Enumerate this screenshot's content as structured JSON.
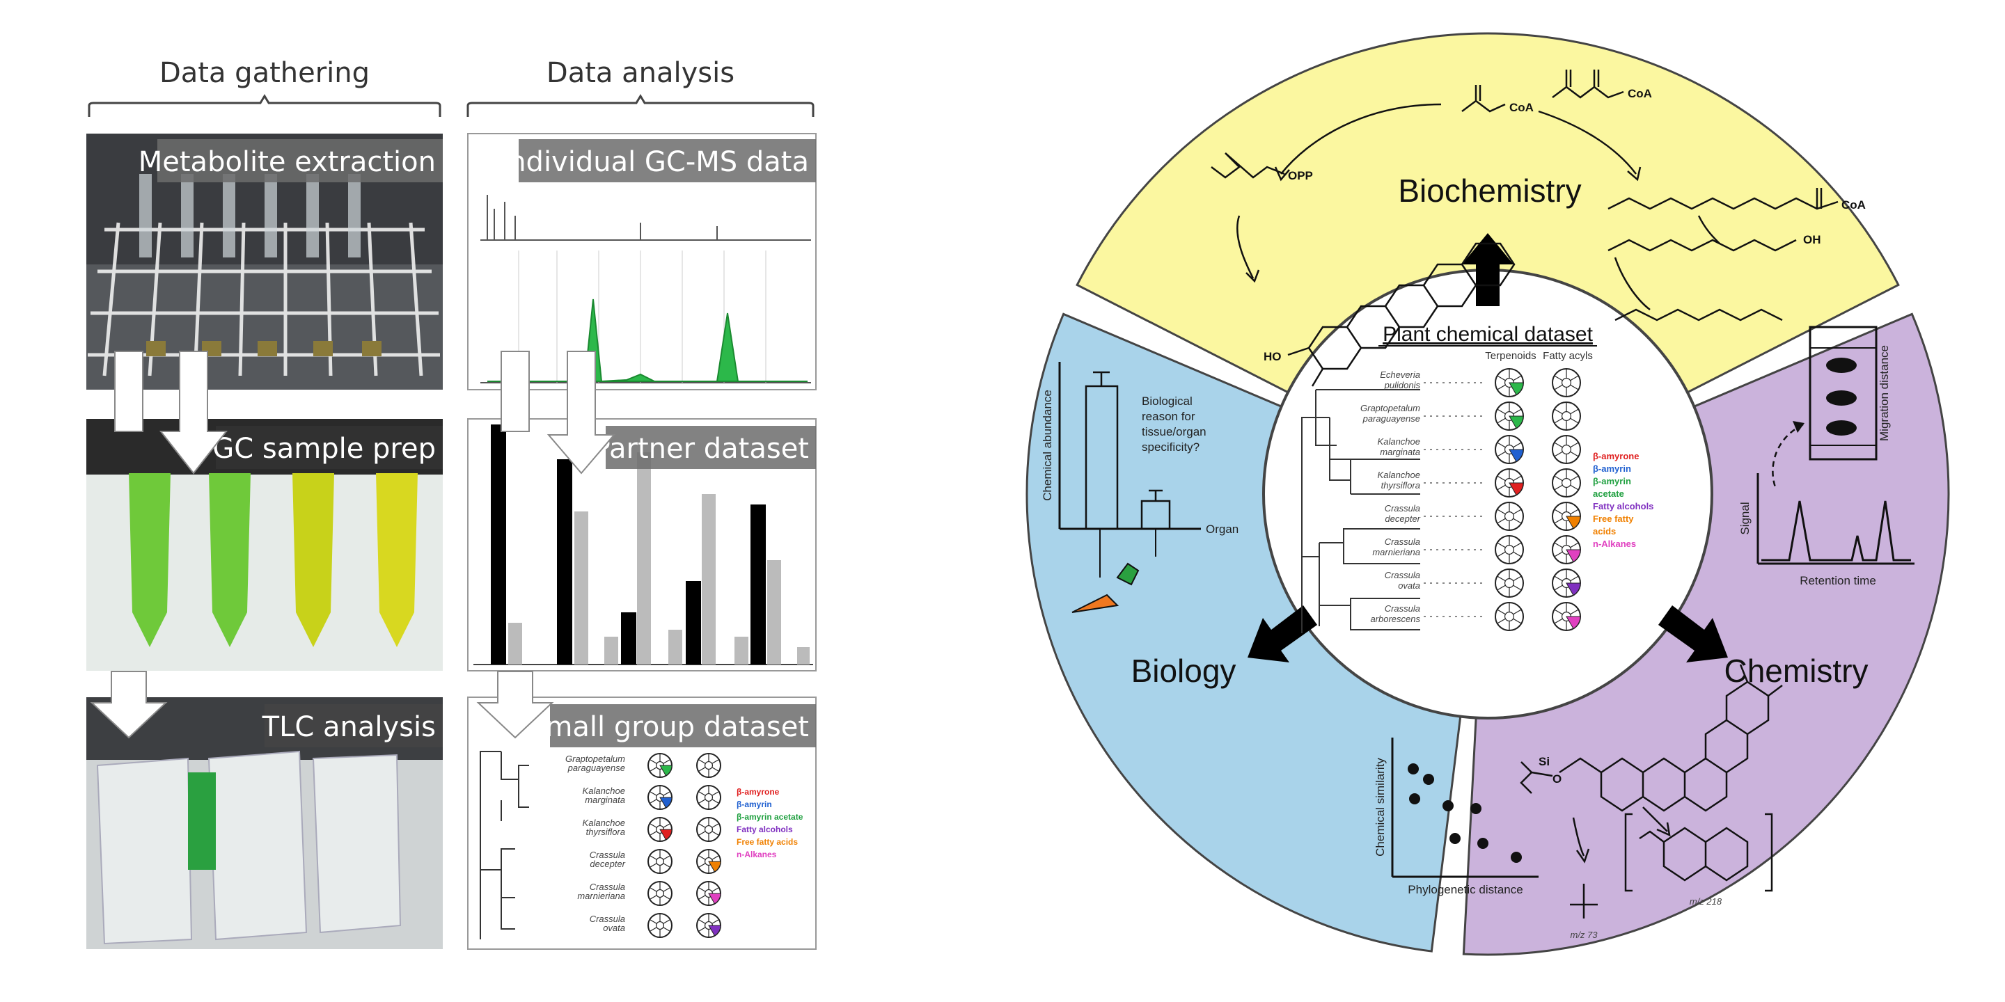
{
  "left": {
    "columns": {
      "gathering": "Data gathering",
      "analysis": "Data analysis"
    },
    "panels": {
      "metabolite_extraction": "Metabolite extraction",
      "gc_sample_prep": "GC sample prep",
      "tlc_analysis": "TLC analysis",
      "individual_gcms": "Individual GC-MS data",
      "partner_dataset": "Partner dataset",
      "small_group_dataset": "Small group dataset"
    },
    "small_group_species": [
      "Graptopetalum paraguayense",
      "Kalanchoe marginata",
      "Kalanchoe thyrsiflora",
      "Crassula decepter",
      "Crassula marnieriana",
      "Crassula ovata"
    ],
    "small_group_legend": [
      {
        "text": "β-amyrone",
        "color": "#e02020"
      },
      {
        "text": "β-amyrin",
        "color": "#2060d0"
      },
      {
        "text": "β-amyrin acetate",
        "color": "#20a040"
      },
      {
        "text": "Fatty alcohols",
        "color": "#8030c0"
      },
      {
        "text": "Free fatty acids",
        "color": "#f08000"
      },
      {
        "text": "n-Alkanes",
        "color": "#e040c0"
      }
    ]
  },
  "right": {
    "sectors": {
      "biochemistry": "Biochemistry",
      "biology": "Biology",
      "chemistry": "Chemistry"
    },
    "center": {
      "title": "Plant chemical dataset",
      "col_terpenoids": "Terpenoids",
      "col_fatty_acyls": "Fatty acyls"
    },
    "species": [
      "Echeveria pulidonis",
      "Graptopetalum paraguayense",
      "Kalanchoe marginata",
      "Kalanchoe thyrsiflora",
      "Crassula decepter",
      "Crassula marnieriana",
      "Crassula ovata",
      "Crassula arborescens"
    ],
    "legend": [
      {
        "text": "β-amyrone",
        "color": "#e02020"
      },
      {
        "text": "β-amyrin",
        "color": "#2060d0"
      },
      {
        "text": "β-amyrin",
        "color": "#20a040"
      },
      {
        "text": "acetate",
        "color": "#20a040"
      },
      {
        "text": "Fatty alcohols",
        "color": "#8030c0"
      },
      {
        "text": "Free fatty",
        "color": "#f08000"
      },
      {
        "text": "acids",
        "color": "#f08000"
      },
      {
        "text": "n-Alkanes",
        "color": "#e040c0"
      }
    ],
    "biology_plot": {
      "y_label": "Chemical abundance",
      "x_label": "Organ",
      "note_lines": [
        "Biological",
        "reason for",
        "tissue/organ",
        "specificity?"
      ]
    },
    "scatter_plot": {
      "y_label": "Chemical similarity",
      "x_label": "Phylogenetic distance"
    },
    "chem_plots": {
      "tlc_label": "Migration distance",
      "gc_y_label": "Signal",
      "gc_x_label": "Retention time",
      "mz73": "m/z 73",
      "mz218": "m/z 218"
    },
    "molecules": {
      "coa1": "CoA",
      "coa2": "CoA",
      "coa3": "CoA",
      "opp": "OPP",
      "oh1": "OH",
      "ho": "HO",
      "si": "Si",
      "o": "O"
    },
    "colors": {
      "biochemistry": "#fbf7a0",
      "biology": "#a9d3ea",
      "chemistry": "#cbb3dc",
      "fill_green": "#2cb84a"
    }
  }
}
